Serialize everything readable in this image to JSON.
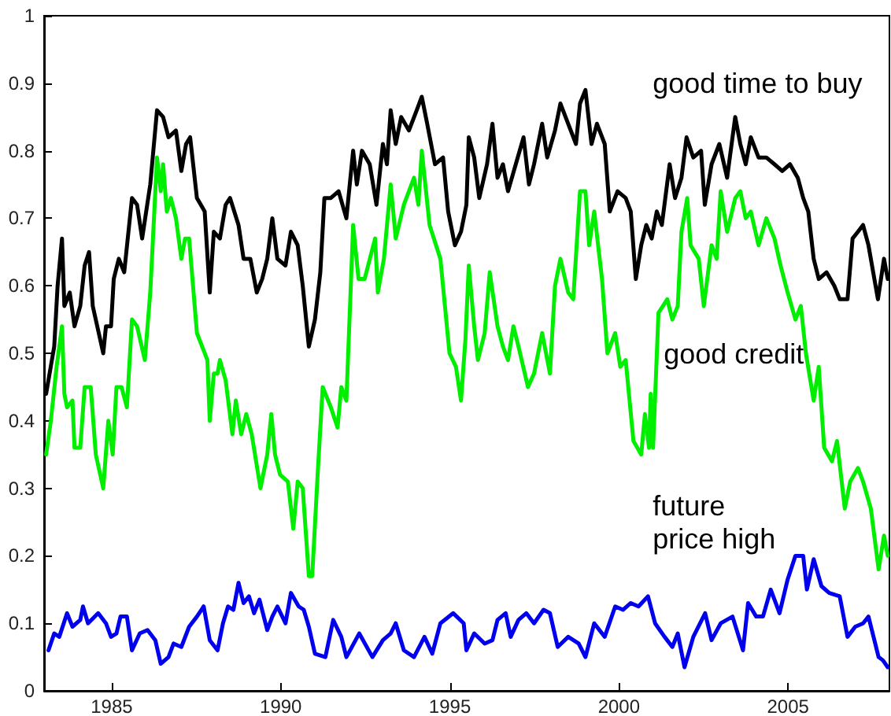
{
  "chart_data": {
    "type": "line",
    "xlim": [
      1983,
      2008
    ],
    "xticks": [
      1985,
      1990,
      1995,
      2000,
      2005
    ],
    "ylim": [
      0,
      1
    ],
    "yticks": [
      0,
      0.1,
      0.2,
      0.3,
      0.4,
      0.5,
      0.6,
      0.7,
      0.8,
      0.9,
      1
    ],
    "grid": false,
    "legend": false,
    "marker": "none",
    "line_style": "solid",
    "series": [
      {
        "name": "good time to buy",
        "color": "#000000",
        "x": [
          1983.06,
          1983.3,
          1983.4,
          1983.53,
          1983.6,
          1983.76,
          1983.9,
          1984.07,
          1984.2,
          1984.33,
          1984.44,
          1984.75,
          1984.83,
          1984.98,
          1985.06,
          1985.21,
          1985.37,
          1985.6,
          1985.75,
          1985.9,
          1986.14,
          1986.34,
          1986.52,
          1986.68,
          1986.9,
          1987.06,
          1987.2,
          1987.32,
          1987.52,
          1987.75,
          1987.9,
          1988.02,
          1988.2,
          1988.37,
          1988.5,
          1988.75,
          1988.9,
          1989.1,
          1989.29,
          1989.45,
          1989.6,
          1989.75,
          1989.9,
          1990.14,
          1990.3,
          1990.5,
          1990.65,
          1990.83,
          1991.01,
          1991.17,
          1991.29,
          1991.48,
          1991.71,
          1991.94,
          1992.14,
          1992.25,
          1992.4,
          1992.63,
          1992.83,
          1993.02,
          1993.14,
          1993.25,
          1993.4,
          1993.56,
          1993.79,
          1994.02,
          1994.17,
          1994.33,
          1994.56,
          1994.8,
          1994.95,
          1995.15,
          1995.33,
          1995.49,
          1995.56,
          1995.72,
          1995.87,
          1996.1,
          1996.26,
          1996.41,
          1996.57,
          1996.72,
          1996.95,
          1997.18,
          1997.34,
          1997.49,
          1997.73,
          1997.88,
          1998.11,
          1998.27,
          1998.5,
          1998.73,
          1998.85,
          1999.01,
          1999.19,
          1999.35,
          1999.58,
          1999.73,
          1999.96,
          2000.2,
          2000.35,
          2000.5,
          2000.66,
          2000.81,
          2000.97,
          2001.12,
          2001.27,
          2001.5,
          2001.66,
          2001.85,
          2002,
          2002.2,
          2002.43,
          2002.54,
          2002.74,
          2002.97,
          2003.2,
          2003.44,
          2003.59,
          2003.75,
          2003.9,
          2004.13,
          2004.36,
          2004.6,
          2004.83,
          2005.06,
          2005.29,
          2005.45,
          2005.6,
          2005.76,
          2005.91,
          2006.14,
          2006.37,
          2006.53,
          2006.76,
          2006.91,
          2007.07,
          2007.22,
          2007.38,
          2007.66,
          2007.84,
          2007.95
        ],
        "values": [
          0.44,
          0.51,
          0.6,
          0.67,
          0.57,
          0.59,
          0.54,
          0.57,
          0.63,
          0.65,
          0.57,
          0.5,
          0.54,
          0.54,
          0.61,
          0.64,
          0.62,
          0.73,
          0.72,
          0.67,
          0.75,
          0.86,
          0.85,
          0.82,
          0.83,
          0.77,
          0.81,
          0.82,
          0.73,
          0.71,
          0.59,
          0.68,
          0.67,
          0.72,
          0.73,
          0.69,
          0.64,
          0.64,
          0.59,
          0.61,
          0.64,
          0.7,
          0.64,
          0.63,
          0.68,
          0.66,
          0.6,
          0.51,
          0.55,
          0.62,
          0.73,
          0.73,
          0.74,
          0.7,
          0.8,
          0.75,
          0.8,
          0.78,
          0.72,
          0.81,
          0.78,
          0.86,
          0.81,
          0.85,
          0.83,
          0.86,
          0.88,
          0.84,
          0.78,
          0.79,
          0.71,
          0.66,
          0.68,
          0.72,
          0.82,
          0.79,
          0.73,
          0.78,
          0.84,
          0.76,
          0.78,
          0.74,
          0.78,
          0.82,
          0.75,
          0.78,
          0.84,
          0.79,
          0.83,
          0.87,
          0.84,
          0.81,
          0.87,
          0.89,
          0.81,
          0.84,
          0.81,
          0.71,
          0.74,
          0.73,
          0.71,
          0.61,
          0.66,
          0.69,
          0.67,
          0.71,
          0.69,
          0.78,
          0.73,
          0.76,
          0.82,
          0.79,
          0.8,
          0.72,
          0.78,
          0.81,
          0.76,
          0.85,
          0.81,
          0.78,
          0.82,
          0.79,
          0.79,
          0.78,
          0.77,
          0.78,
          0.76,
          0.73,
          0.71,
          0.64,
          0.61,
          0.62,
          0.6,
          0.58,
          0.58,
          0.67,
          0.68,
          0.69,
          0.66,
          0.58,
          0.64,
          0.61
        ]
      },
      {
        "name": "good credit",
        "color": "#00ee00",
        "x": [
          1983.06,
          1983.2,
          1983.37,
          1983.53,
          1983.6,
          1983.68,
          1983.84,
          1983.9,
          1984.07,
          1984.2,
          1984.38,
          1984.53,
          1984.75,
          1984.9,
          1985.03,
          1985.14,
          1985.29,
          1985.45,
          1985.6,
          1985.75,
          1985.98,
          1986.14,
          1986.34,
          1986.45,
          1986.52,
          1986.63,
          1986.75,
          1986.9,
          1987.06,
          1987.17,
          1987.29,
          1987.52,
          1987.83,
          1987.9,
          1988.02,
          1988.13,
          1988.2,
          1988.37,
          1988.57,
          1988.67,
          1988.83,
          1988.98,
          1989.14,
          1989.4,
          1989.6,
          1989.72,
          1989.83,
          1989.98,
          1990.21,
          1990.37,
          1990.5,
          1990.65,
          1990.83,
          1990.93,
          1991.09,
          1991.24,
          1991.48,
          1991.68,
          1991.79,
          1991.94,
          1992.14,
          1992.3,
          1992.48,
          1992.79,
          1992.87,
          1993.05,
          1993.25,
          1993.4,
          1993.64,
          1993.94,
          1994.07,
          1994.17,
          1994.4,
          1994.72,
          1994.99,
          1995.18,
          1995.33,
          1995.46,
          1995.56,
          1995.72,
          1995.83,
          1996.03,
          1996.18,
          1996.41,
          1996.57,
          1996.72,
          1996.88,
          1997.03,
          1997.31,
          1997.49,
          1997.73,
          1997.96,
          1998.11,
          1998.27,
          1998.5,
          1998.65,
          1998.85,
          1999.01,
          1999.12,
          1999.27,
          1999.5,
          1999.66,
          1999.89,
          2000.04,
          2000.2,
          2000.43,
          2000.66,
          2000.77,
          2000.89,
          2000.94,
          2001.01,
          2001.17,
          2001.43,
          2001.58,
          2001.74,
          2001.85,
          2002.02,
          2002.12,
          2002.36,
          2002.51,
          2002.74,
          2002.89,
          2003.01,
          2003.2,
          2003.44,
          2003.59,
          2003.75,
          2003.9,
          2004.13,
          2004.36,
          2004.6,
          2004.78,
          2004.99,
          2005.22,
          2005.38,
          2005.53,
          2005.76,
          2005.91,
          2006.07,
          2006.3,
          2006.45,
          2006.68,
          2006.84,
          2007.07,
          2007.22,
          2007.45,
          2007.68,
          2007.84,
          2007.95
        ],
        "values": [
          0.35,
          0.4,
          0.48,
          0.54,
          0.44,
          0.42,
          0.43,
          0.36,
          0.36,
          0.45,
          0.45,
          0.35,
          0.3,
          0.4,
          0.35,
          0.45,
          0.45,
          0.42,
          0.55,
          0.54,
          0.49,
          0.59,
          0.79,
          0.74,
          0.78,
          0.71,
          0.73,
          0.7,
          0.64,
          0.67,
          0.67,
          0.53,
          0.49,
          0.4,
          0.47,
          0.47,
          0.49,
          0.46,
          0.38,
          0.43,
          0.38,
          0.41,
          0.38,
          0.3,
          0.35,
          0.41,
          0.35,
          0.32,
          0.31,
          0.24,
          0.31,
          0.3,
          0.17,
          0.17,
          0.32,
          0.45,
          0.42,
          0.39,
          0.45,
          0.43,
          0.69,
          0.61,
          0.61,
          0.67,
          0.59,
          0.64,
          0.75,
          0.67,
          0.72,
          0.76,
          0.72,
          0.8,
          0.69,
          0.64,
          0.5,
          0.48,
          0.43,
          0.52,
          0.63,
          0.54,
          0.49,
          0.53,
          0.62,
          0.54,
          0.51,
          0.49,
          0.54,
          0.51,
          0.45,
          0.47,
          0.53,
          0.47,
          0.6,
          0.64,
          0.59,
          0.58,
          0.74,
          0.74,
          0.66,
          0.71,
          0.61,
          0.5,
          0.53,
          0.48,
          0.49,
          0.37,
          0.35,
          0.41,
          0.36,
          0.44,
          0.36,
          0.56,
          0.58,
          0.55,
          0.57,
          0.68,
          0.73,
          0.66,
          0.64,
          0.57,
          0.66,
          0.64,
          0.74,
          0.68,
          0.73,
          0.74,
          0.7,
          0.71,
          0.66,
          0.7,
          0.67,
          0.63,
          0.59,
          0.55,
          0.57,
          0.5,
          0.43,
          0.48,
          0.36,
          0.34,
          0.37,
          0.27,
          0.31,
          0.33,
          0.31,
          0.27,
          0.18,
          0.23,
          0.2
        ]
      },
      {
        "name": "future price high",
        "color": "#0000ee",
        "x": [
          1983.13,
          1983.3,
          1983.45,
          1983.68,
          1983.84,
          1984.07,
          1984.15,
          1984.3,
          1984.6,
          1984.83,
          1984.98,
          1985.14,
          1985.26,
          1985.45,
          1985.6,
          1985.83,
          1986.06,
          1986.29,
          1986.45,
          1986.68,
          1986.83,
          1987.06,
          1987.29,
          1987.52,
          1987.72,
          1987.9,
          1988.13,
          1988.29,
          1988.44,
          1988.6,
          1988.75,
          1988.9,
          1989.06,
          1989.21,
          1989.37,
          1989.6,
          1989.75,
          1989.9,
          1990.14,
          1990.3,
          1990.53,
          1990.68,
          1990.83,
          1991.01,
          1991.32,
          1991.55,
          1991.79,
          1991.94,
          1992.32,
          1992.71,
          1993.02,
          1993.25,
          1993.4,
          1993.64,
          1993.94,
          1994.25,
          1994.48,
          1994.72,
          1995.1,
          1995.41,
          1995.49,
          1995.72,
          1996.03,
          1996.26,
          1996.41,
          1996.65,
          1996.8,
          1997.03,
          1997.26,
          1997.49,
          1997.77,
          1997.96,
          1998.19,
          1998.5,
          1998.81,
          1999.01,
          1999.27,
          1999.58,
          1999.89,
          2000.12,
          2000.35,
          2000.58,
          2000.86,
          2001.07,
          2001.35,
          2001.58,
          2001.74,
          2001.94,
          2002.2,
          2002.55,
          2002.74,
          2003.01,
          2003.36,
          2003.67,
          2003.82,
          2004.06,
          2004.26,
          2004.49,
          2004.75,
          2004.99,
          2005.22,
          2005.45,
          2005.56,
          2005.76,
          2005.99,
          2006.22,
          2006.53,
          2006.76,
          2006.99,
          2007.22,
          2007.38,
          2007.68,
          2007.81,
          2007.95
        ],
        "values": [
          0.06,
          0.085,
          0.08,
          0.115,
          0.095,
          0.105,
          0.125,
          0.1,
          0.115,
          0.1,
          0.08,
          0.085,
          0.11,
          0.11,
          0.06,
          0.085,
          0.09,
          0.075,
          0.04,
          0.05,
          0.07,
          0.065,
          0.095,
          0.11,
          0.125,
          0.075,
          0.06,
          0.1,
          0.125,
          0.12,
          0.16,
          0.13,
          0.14,
          0.115,
          0.135,
          0.09,
          0.11,
          0.125,
          0.1,
          0.145,
          0.125,
          0.12,
          0.095,
          0.055,
          0.05,
          0.105,
          0.08,
          0.05,
          0.085,
          0.05,
          0.075,
          0.085,
          0.1,
          0.06,
          0.05,
          0.08,
          0.055,
          0.1,
          0.115,
          0.1,
          0.06,
          0.085,
          0.07,
          0.075,
          0.105,
          0.115,
          0.08,
          0.105,
          0.115,
          0.1,
          0.12,
          0.115,
          0.065,
          0.08,
          0.07,
          0.05,
          0.1,
          0.08,
          0.125,
          0.12,
          0.13,
          0.125,
          0.14,
          0.1,
          0.08,
          0.065,
          0.085,
          0.035,
          0.08,
          0.115,
          0.075,
          0.1,
          0.11,
          0.06,
          0.13,
          0.11,
          0.11,
          0.15,
          0.115,
          0.165,
          0.2,
          0.2,
          0.15,
          0.195,
          0.155,
          0.145,
          0.14,
          0.08,
          0.095,
          0.1,
          0.11,
          0.05,
          0.045,
          0.035
        ]
      }
    ]
  }
}
